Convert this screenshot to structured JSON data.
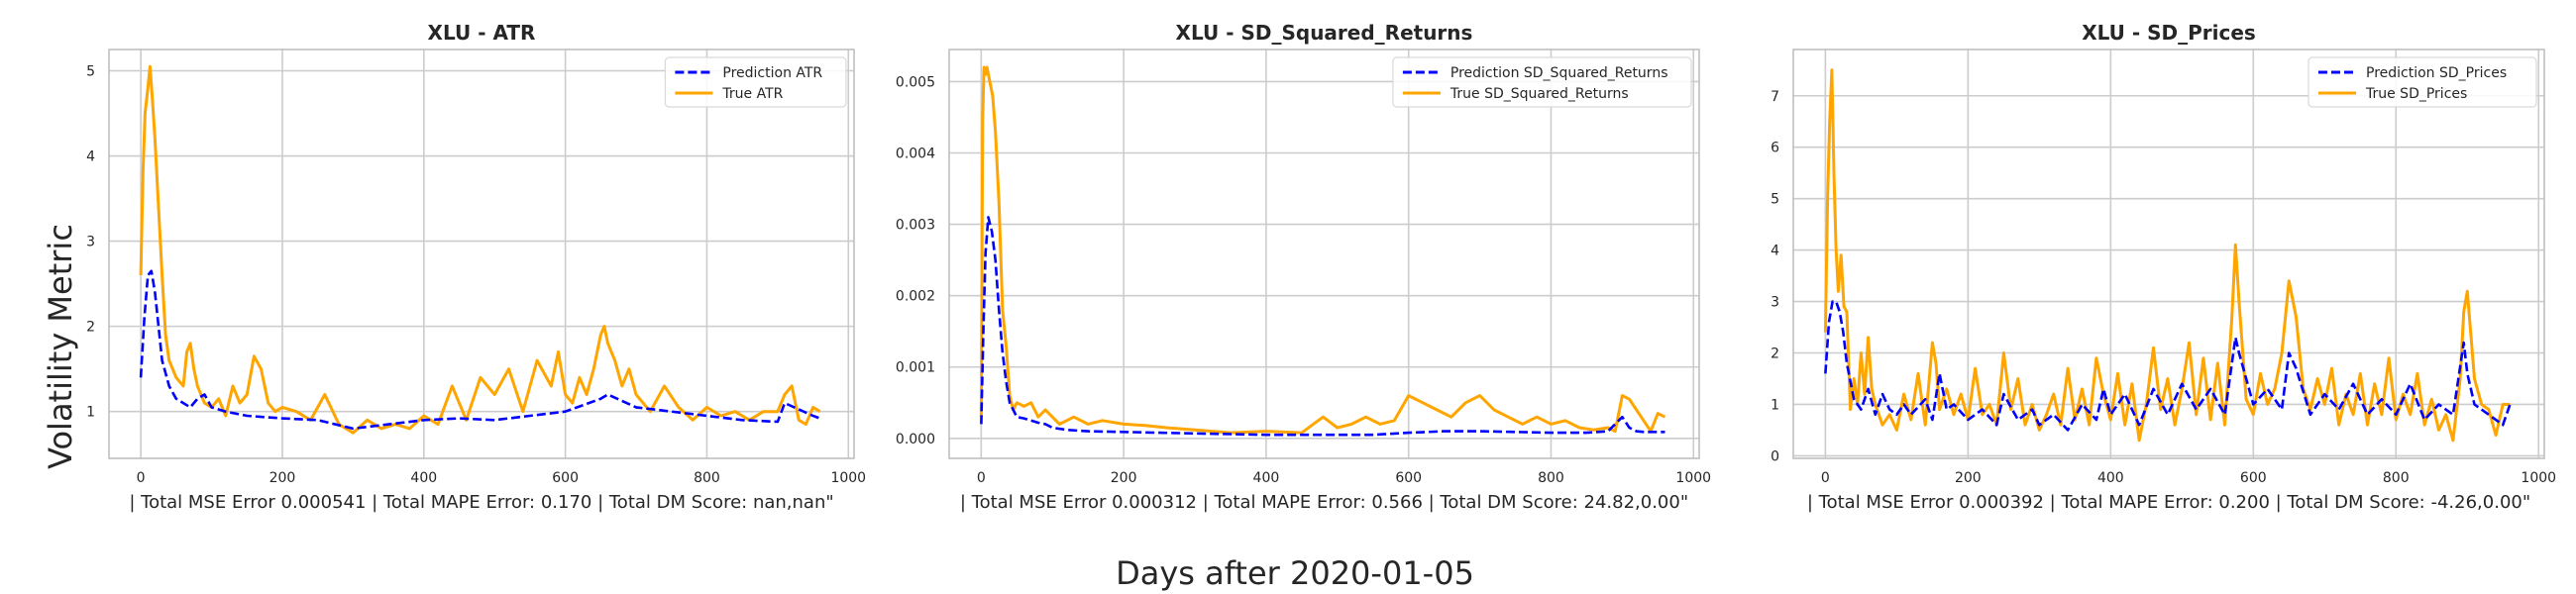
{
  "figure": {
    "ylabel": "Volatility Metric",
    "xlabel": "Days after 2020-01-05"
  },
  "colors": {
    "prediction": "#0000ff",
    "true": "#ffa500",
    "grid": "#cccccc",
    "spine": "#bfbfbf"
  },
  "chart_data": [
    {
      "type": "line",
      "title": "XLU - ATR",
      "xlabel": "| Total MSE Error 0.000541 | Total MAPE Error: 0.170 | Total DM Score: nan,nan\"",
      "xlim": [
        -45,
        1008
      ],
      "ylim": [
        0.45,
        5.25
      ],
      "xticks": [
        0,
        200,
        400,
        600,
        800,
        1000
      ],
      "xticklabels": [
        "0",
        "200",
        "400",
        "600",
        "800",
        "1000"
      ],
      "yticks": [
        1,
        2,
        3,
        4,
        5
      ],
      "yticklabels": [
        "1",
        "2",
        "3",
        "4",
        "5"
      ],
      "legend_position": "top-right",
      "series": [
        {
          "name": "Prediction ATR",
          "style": "dashed",
          "x": [
            0,
            5,
            10,
            15,
            20,
            25,
            30,
            40,
            50,
            60,
            70,
            80,
            90,
            100,
            120,
            150,
            200,
            250,
            300,
            350,
            400,
            450,
            500,
            550,
            600,
            650,
            660,
            700,
            750,
            800,
            850,
            900,
            910,
            950,
            960
          ],
          "y": [
            1.4,
            2.1,
            2.6,
            2.65,
            2.4,
            2.0,
            1.6,
            1.3,
            1.15,
            1.1,
            1.05,
            1.15,
            1.2,
            1.05,
            1.0,
            0.95,
            0.92,
            0.9,
            0.8,
            0.85,
            0.9,
            0.92,
            0.9,
            0.95,
            1.0,
            1.15,
            1.2,
            1.05,
            1.0,
            0.95,
            0.9,
            0.88,
            1.1,
            0.95,
            0.92
          ]
        },
        {
          "name": "True ATR",
          "style": "solid",
          "x": [
            0,
            3,
            6,
            10,
            13,
            16,
            20,
            25,
            30,
            35,
            40,
            45,
            50,
            55,
            60,
            65,
            70,
            75,
            80,
            90,
            100,
            110,
            120,
            130,
            140,
            150,
            160,
            170,
            180,
            190,
            200,
            220,
            240,
            260,
            280,
            300,
            320,
            340,
            360,
            380,
            400,
            420,
            440,
            460,
            480,
            500,
            520,
            540,
            560,
            580,
            590,
            600,
            610,
            620,
            630,
            640,
            650,
            655,
            660,
            670,
            680,
            690,
            700,
            720,
            740,
            760,
            780,
            800,
            820,
            840,
            860,
            880,
            900,
            910,
            920,
            930,
            940,
            950,
            960
          ],
          "y": [
            2.6,
            3.8,
            4.5,
            4.8,
            5.05,
            4.7,
            4.2,
            3.4,
            2.6,
            1.9,
            1.6,
            1.5,
            1.4,
            1.35,
            1.3,
            1.7,
            1.8,
            1.5,
            1.3,
            1.1,
            1.05,
            1.15,
            0.95,
            1.3,
            1.1,
            1.2,
            1.65,
            1.5,
            1.1,
            1.0,
            1.05,
            1.0,
            0.9,
            1.2,
            0.85,
            0.75,
            0.9,
            0.8,
            0.85,
            0.8,
            0.95,
            0.85,
            1.3,
            0.9,
            1.4,
            1.2,
            1.5,
            1.0,
            1.6,
            1.3,
            1.7,
            1.2,
            1.1,
            1.4,
            1.2,
            1.5,
            1.9,
            2.0,
            1.8,
            1.6,
            1.3,
            1.5,
            1.2,
            1.0,
            1.3,
            1.05,
            0.9,
            1.05,
            0.95,
            1.0,
            0.9,
            1.0,
            1.0,
            1.2,
            1.3,
            0.9,
            0.85,
            1.05,
            1.0
          ]
        }
      ]
    },
    {
      "type": "line",
      "title": "XLU - SD_Squared_Returns",
      "xlabel": "| Total MSE Error 0.000312 | Total MAPE Error: 0.566 | Total DM Score: 24.82,0.00\"",
      "xlim": [
        -45,
        1008
      ],
      "ylim": [
        -0.00028,
        0.00545
      ],
      "xticks": [
        0,
        200,
        400,
        600,
        800,
        1000
      ],
      "xticklabels": [
        "0",
        "200",
        "400",
        "600",
        "800",
        "1000"
      ],
      "yticks": [
        0.0,
        0.001,
        0.002,
        0.003,
        0.004,
        0.005
      ],
      "yticklabels": [
        "0.000",
        "0.001",
        "0.002",
        "0.003",
        "0.004",
        "0.005"
      ],
      "legend_position": "top-right",
      "series": [
        {
          "name": "Prediction SD_Squared_Returns",
          "style": "dashed",
          "x": [
            0,
            3,
            6,
            10,
            15,
            20,
            25,
            30,
            35,
            40,
            45,
            50,
            60,
            70,
            80,
            90,
            100,
            120,
            150,
            200,
            250,
            300,
            350,
            400,
            450,
            500,
            550,
            600,
            650,
            700,
            750,
            800,
            850,
            880,
            900,
            910,
            920,
            930,
            960
          ],
          "y": [
            0.0002,
            0.0015,
            0.0026,
            0.0031,
            0.0029,
            0.0025,
            0.0018,
            0.0012,
            0.0008,
            0.0005,
            0.0004,
            0.0003,
            0.00028,
            0.00025,
            0.00022,
            0.0002,
            0.00015,
            0.00012,
            0.0001,
            9e-05,
            8e-05,
            7e-05,
            6e-05,
            5e-05,
            5e-05,
            5e-05,
            5e-05,
            8e-05,
            0.0001,
            0.0001,
            9e-05,
            8e-05,
            8e-05,
            0.0001,
            0.0003,
            0.00015,
            0.0001,
            9e-05,
            9e-05
          ]
        },
        {
          "name": "True SD_Squared_Returns",
          "style": "solid",
          "x": [
            0,
            2,
            4,
            6,
            8,
            12,
            16,
            20,
            25,
            30,
            35,
            40,
            45,
            50,
            60,
            70,
            80,
            90,
            100,
            110,
            120,
            130,
            150,
            170,
            200,
            230,
            260,
            300,
            350,
            400,
            450,
            480,
            500,
            520,
            540,
            560,
            580,
            600,
            620,
            640,
            660,
            680,
            700,
            720,
            740,
            760,
            780,
            800,
            820,
            840,
            860,
            880,
            890,
            900,
            910,
            920,
            940,
            950,
            960
          ],
          "y": [
            0.0003,
            0.0045,
            0.0052,
            0.0051,
            0.0052,
            0.005,
            0.0048,
            0.0043,
            0.0033,
            0.0018,
            0.0013,
            0.0006,
            0.0004,
            0.0005,
            0.00045,
            0.0005,
            0.0003,
            0.0004,
            0.0003,
            0.0002,
            0.00025,
            0.0003,
            0.0002,
            0.00025,
            0.0002,
            0.00018,
            0.00015,
            0.00012,
            8e-05,
            0.0001,
            8e-05,
            0.0003,
            0.00015,
            0.0002,
            0.0003,
            0.0002,
            0.00025,
            0.0006,
            0.0005,
            0.0004,
            0.0003,
            0.0005,
            0.0006,
            0.0004,
            0.0003,
            0.0002,
            0.0003,
            0.0002,
            0.00025,
            0.00015,
            0.00012,
            0.00015,
            0.0001,
            0.0006,
            0.00055,
            0.0004,
            0.0001,
            0.00035,
            0.0003
          ]
        }
      ]
    },
    {
      "type": "line",
      "title": "XLU - SD_Prices",
      "xlabel": "| Total MSE Error 0.000392 | Total MAPE Error: 0.200 | Total DM Score: -4.26,0.00\"",
      "xlim": [
        -45,
        1008
      ],
      "ylim": [
        -0.05,
        7.9
      ],
      "xticks": [
        0,
        200,
        400,
        600,
        800,
        1000
      ],
      "xticklabels": [
        "0",
        "200",
        "400",
        "600",
        "800",
        "1000"
      ],
      "yticks": [
        0,
        1,
        2,
        3,
        4,
        5,
        6,
        7
      ],
      "yticklabels": [
        "0",
        "1",
        "2",
        "3",
        "4",
        "5",
        "6",
        "7"
      ],
      "legend_position": "top-right",
      "series": [
        {
          "name": "Prediction SD_Prices",
          "style": "dashed",
          "x": [
            0,
            5,
            10,
            15,
            20,
            25,
            30,
            40,
            50,
            60,
            70,
            80,
            90,
            100,
            110,
            120,
            140,
            150,
            160,
            170,
            180,
            200,
            220,
            240,
            250,
            270,
            290,
            300,
            320,
            340,
            360,
            380,
            390,
            400,
            420,
            440,
            460,
            480,
            500,
            520,
            540,
            560,
            575,
            580,
            600,
            620,
            640,
            650,
            660,
            680,
            700,
            720,
            740,
            760,
            780,
            800,
            820,
            840,
            860,
            880,
            895,
            900,
            910,
            930,
            950,
            960
          ],
          "y": [
            1.6,
            2.6,
            3.0,
            3.0,
            2.8,
            2.4,
            1.8,
            1.1,
            0.9,
            1.3,
            0.8,
            1.2,
            0.9,
            0.8,
            1.0,
            0.8,
            1.1,
            0.7,
            1.6,
            0.9,
            1.0,
            0.7,
            0.9,
            0.6,
            1.2,
            0.7,
            0.9,
            0.6,
            0.8,
            0.5,
            1.0,
            0.7,
            1.3,
            0.8,
            1.2,
            0.6,
            1.3,
            0.8,
            1.4,
            0.9,
            1.3,
            0.8,
            2.3,
            2.0,
            1.0,
            1.3,
            0.9,
            2.0,
            1.7,
            0.8,
            1.2,
            0.9,
            1.4,
            0.8,
            1.1,
            0.8,
            1.4,
            0.7,
            1.0,
            0.8,
            2.2,
            1.6,
            1.0,
            0.8,
            0.6,
            1.0
          ]
        },
        {
          "name": "True SD_Prices",
          "style": "solid",
          "x": [
            0,
            3,
            6,
            9,
            12,
            15,
            18,
            22,
            26,
            30,
            35,
            40,
            45,
            50,
            55,
            60,
            65,
            70,
            80,
            90,
            100,
            110,
            120,
            130,
            140,
            150,
            155,
            160,
            170,
            180,
            190,
            200,
            210,
            220,
            230,
            240,
            250,
            260,
            270,
            280,
            290,
            300,
            310,
            320,
            330,
            340,
            350,
            360,
            370,
            380,
            390,
            400,
            410,
            420,
            430,
            440,
            450,
            460,
            470,
            480,
            490,
            500,
            510,
            520,
            530,
            540,
            550,
            560,
            570,
            575,
            580,
            590,
            600,
            610,
            620,
            630,
            640,
            650,
            660,
            670,
            680,
            690,
            700,
            710,
            720,
            730,
            740,
            750,
            760,
            770,
            780,
            790,
            800,
            810,
            820,
            830,
            840,
            850,
            860,
            870,
            880,
            890,
            895,
            900,
            910,
            920,
            930,
            940,
            950,
            960
          ],
          "y": [
            2.4,
            5.0,
            6.5,
            7.5,
            5.5,
            4.0,
            3.2,
            3.9,
            2.9,
            2.8,
            0.9,
            1.5,
            1.0,
            2.0,
            1.2,
            2.3,
            1.3,
            1.0,
            0.6,
            0.8,
            0.5,
            1.2,
            0.7,
            1.6,
            0.6,
            2.2,
            1.8,
            0.9,
            1.3,
            0.8,
            1.2,
            0.7,
            1.7,
            0.8,
            1.0,
            0.6,
            2.0,
            0.9,
            1.5,
            0.6,
            1.0,
            0.5,
            0.8,
            1.2,
            0.6,
            1.7,
            0.7,
            1.3,
            0.6,
            1.9,
            1.2,
            0.7,
            1.6,
            0.6,
            1.4,
            0.3,
            1.0,
            2.1,
            0.9,
            1.5,
            0.6,
            1.3,
            2.2,
            0.8,
            1.9,
            0.7,
            1.8,
            0.6,
            2.7,
            4.1,
            3.0,
            1.1,
            0.8,
            1.6,
            1.0,
            1.3,
            2.0,
            3.4,
            2.7,
            1.3,
            0.9,
            1.5,
            1.0,
            1.7,
            0.6,
            1.2,
            0.8,
            1.6,
            0.6,
            1.4,
            0.8,
            1.9,
            0.7,
            1.2,
            0.8,
            1.6,
            0.6,
            1.1,
            0.5,
            0.8,
            0.3,
            1.5,
            2.8,
            3.2,
            1.5,
            1.0,
            0.9,
            0.4,
            1.0,
            1.0
          ]
        }
      ]
    }
  ]
}
